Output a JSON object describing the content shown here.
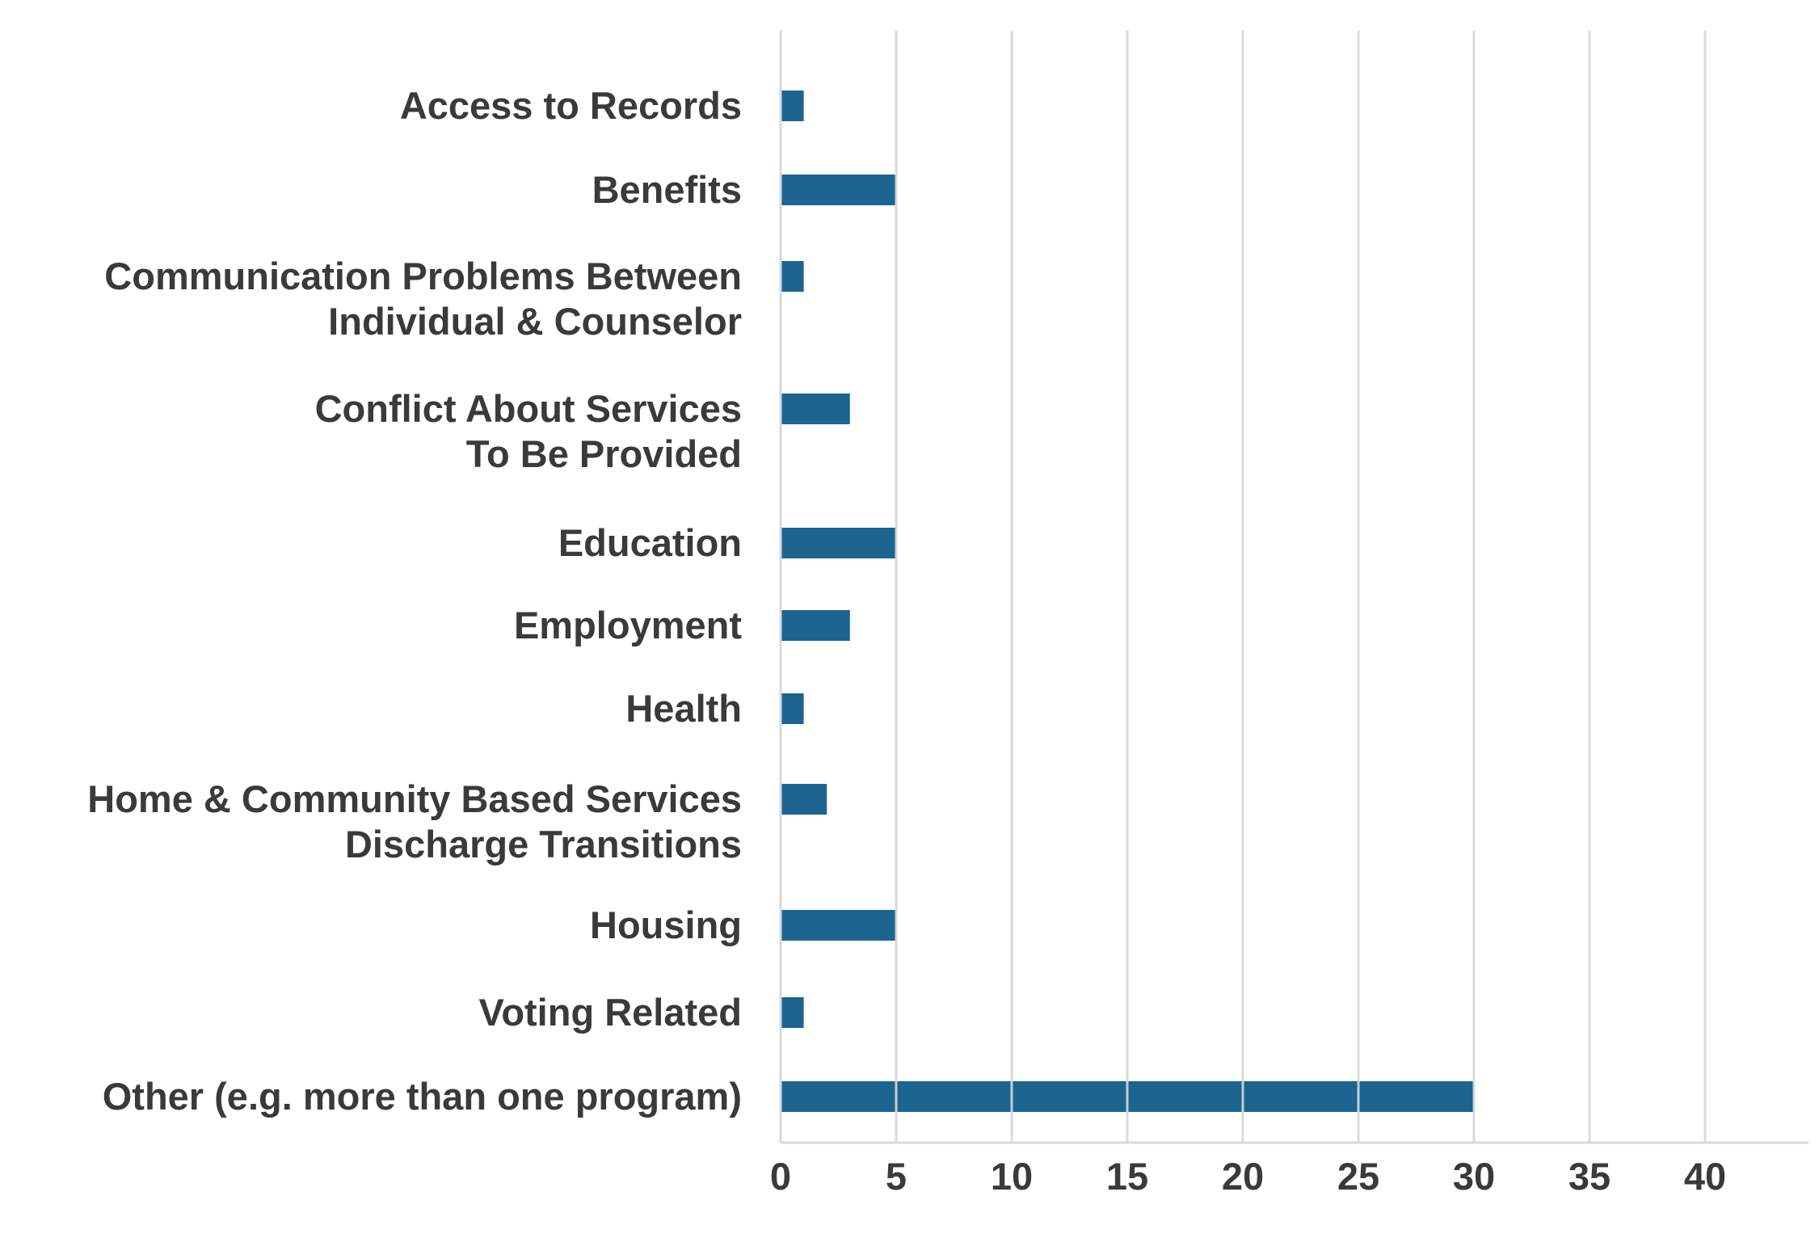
{
  "chart_data": {
    "type": "bar",
    "orientation": "horizontal",
    "categories": [
      [
        "Access to Records"
      ],
      [
        "Benefits"
      ],
      [
        "Communication Problems Between",
        "Individual & Counselor"
      ],
      [
        "Conflict About Services",
        "To Be Provided"
      ],
      [
        "Education"
      ],
      [
        "Employment"
      ],
      [
        "Health"
      ],
      [
        "Home & Community Based Services",
        "Discharge Transitions"
      ],
      [
        "Housing"
      ],
      [
        "Voting Related"
      ],
      [
        "Other (e.g. more than one program)"
      ]
    ],
    "values": [
      1,
      5,
      1,
      3,
      5,
      3,
      1,
      2,
      5,
      1,
      30
    ],
    "xlim": [
      0,
      44
    ],
    "xticks": [
      0,
      5,
      10,
      15,
      20,
      25,
      30,
      35,
      40
    ],
    "tick_labels": [
      "0",
      "5",
      "10",
      "15",
      "20",
      "25",
      "30",
      "35",
      "40"
    ],
    "grid": "vertical",
    "bar_color": "#1b6590",
    "grid_color": "#d9d9d9",
    "axis_color": "#d9d9d9",
    "text_color": "#3a3a3a"
  }
}
